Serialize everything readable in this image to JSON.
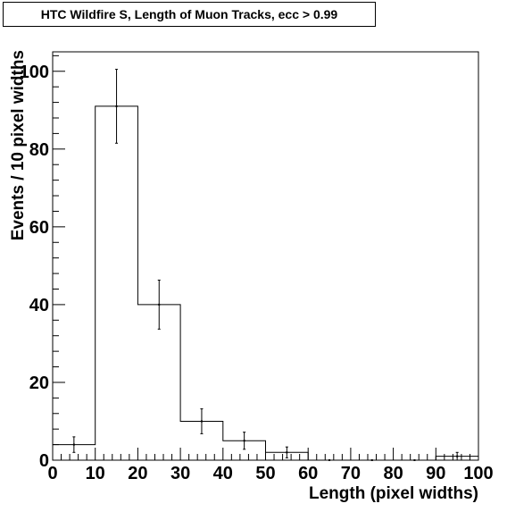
{
  "chart_data": {
    "type": "bar",
    "histogram": true,
    "title": "HTC Wildfire S, Length of Muon Tracks, ecc > 0.99",
    "xlabel": "Length (pixel widths)",
    "ylabel": "Events / 10 pixel widths",
    "xlim": [
      0,
      100
    ],
    "ylim": [
      0,
      105
    ],
    "bin_edges": [
      0,
      10,
      20,
      30,
      40,
      50,
      60,
      70,
      80,
      90,
      100
    ],
    "categories": [
      "0-10",
      "10-20",
      "20-30",
      "30-40",
      "40-50",
      "50-60",
      "60-70",
      "70-80",
      "80-90",
      "90-100"
    ],
    "values": [
      4,
      91,
      40,
      10,
      5,
      2,
      0,
      0,
      0,
      1
    ],
    "errors": [
      2,
      9.5,
      6.3,
      3.2,
      2.2,
      1.4,
      0,
      0,
      0,
      1
    ],
    "x_ticks": [
      "0",
      "10",
      "20",
      "30",
      "40",
      "50",
      "60",
      "70",
      "80",
      "90",
      "100"
    ],
    "y_ticks": [
      "0",
      "20",
      "40",
      "60",
      "80",
      "100"
    ],
    "grid": false,
    "legend": "none"
  }
}
